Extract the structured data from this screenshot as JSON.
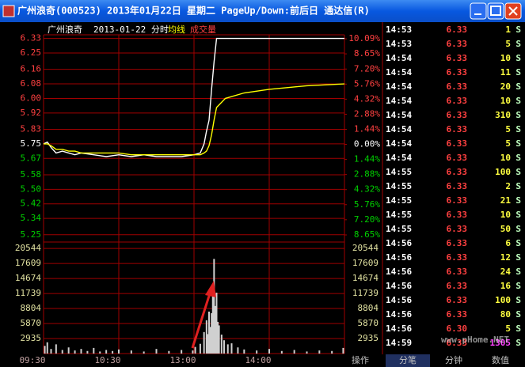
{
  "window": {
    "title": "广州浪奇(000523) 2013年01月22日 星期二 PageUp/Down:前后日 通达信(R)"
  },
  "chart_data": [
    {
      "type": "line",
      "title": "广州浪奇",
      "subtitle": "2013-01-22 分时",
      "x": [
        "09:30",
        "09:33",
        "09:36",
        "09:40",
        "09:45",
        "09:50",
        "09:55",
        "10:00",
        "10:10",
        "10:20",
        "10:30",
        "10:40",
        "10:50",
        "11:00",
        "11:10",
        "11:20",
        "11:30",
        "13:05",
        "13:08",
        "13:10",
        "13:12",
        "13:14",
        "13:16",
        "13:18",
        "13:25",
        "13:40",
        "14:00",
        "14:30",
        "15:00"
      ],
      "series": [
        {
          "color": "#ffffff",
          "values": [
            5.75,
            5.76,
            5.73,
            5.7,
            5.71,
            5.7,
            5.69,
            5.7,
            5.69,
            5.68,
            5.69,
            5.68,
            5.69,
            5.68,
            5.68,
            5.68,
            5.69,
            5.7,
            5.75,
            5.82,
            5.88,
            6.05,
            6.2,
            6.33,
            6.33,
            6.33,
            6.33,
            6.33,
            6.33
          ]
        },
        {
          "name": "均线",
          "color": "#ffff00",
          "values": [
            5.75,
            5.75,
            5.74,
            5.72,
            5.72,
            5.71,
            5.71,
            5.7,
            5.7,
            5.7,
            5.7,
            5.69,
            5.69,
            5.69,
            5.69,
            5.69,
            5.69,
            5.69,
            5.7,
            5.71,
            5.74,
            5.8,
            5.88,
            5.95,
            6.0,
            6.03,
            6.05,
            6.07,
            6.08
          ]
        }
      ],
      "xticks": [
        "09:30",
        "10:30",
        "13:00",
        "14:00"
      ],
      "ylim": [
        5.21,
        6.35
      ],
      "yticks": [
        6.33,
        6.25,
        6.16,
        6.08,
        {
          "value": 6.0,
          "label": "6.00"
        },
        5.92,
        5.83,
        5.75,
        5.67,
        5.58,
        {
          "value": 5.5,
          "label": "5.50"
        },
        5.42,
        5.34,
        5.25
      ],
      "y2lim": [
        -9.33,
        10.47
      ],
      "y2ticks": [
        {
          "value": 10.09,
          "label": "10.09%"
        },
        {
          "value": 8.65,
          "label": "8.65%"
        },
        {
          "value": 7.2,
          "label": "7.20%"
        },
        {
          "value": 5.76,
          "label": "5.76%"
        },
        {
          "value": 4.32,
          "label": "4.32%"
        },
        {
          "value": 2.88,
          "label": "2.88%"
        },
        {
          "value": 1.44,
          "label": "1.44%"
        },
        {
          "value": 0,
          "label": "0.00%"
        },
        {
          "value": -1.44,
          "label": "1.44%"
        },
        {
          "value": -2.88,
          "label": "2.88%"
        },
        {
          "value": -4.32,
          "label": "4.32%"
        },
        {
          "value": -5.76,
          "label": "5.76%"
        },
        {
          "value": -7.2,
          "label": "7.20%"
        },
        {
          "value": -8.65,
          "label": "8.65%"
        }
      ],
      "grid": true
    },
    {
      "type": "bar",
      "x": [
        "09:31",
        "09:33",
        "09:36",
        "09:40",
        "09:45",
        "09:50",
        "09:55",
        "10:00",
        "10:05",
        "10:10",
        "10:15",
        "10:20",
        "10:25",
        "10:30",
        "10:40",
        "10:50",
        "11:00",
        "11:10",
        "11:20",
        "11:29",
        "13:01",
        "13:05",
        "13:08",
        "13:10",
        "13:11",
        "13:12",
        "13:13",
        "13:14",
        "13:15",
        "13:16",
        "13:17",
        "13:18",
        "13:19",
        "13:20",
        "13:22",
        "13:24",
        "13:27",
        "13:30",
        "13:35",
        "13:40",
        "13:50",
        "14:00",
        "14:10",
        "14:20",
        "14:30",
        "14:40",
        "14:50",
        "14:59"
      ],
      "series": [
        {
          "name": "成交量",
          "color": "#d0d0d0",
          "values": [
            1500,
            2200,
            900,
            1800,
            700,
            1200,
            600,
            900,
            500,
            1100,
            400,
            700,
            500,
            800,
            600,
            400,
            900,
            500,
            700,
            600,
            1300,
            1900,
            4200,
            6500,
            3800,
            8200,
            5200,
            7900,
            12100,
            18500,
            9300,
            11900,
            6200,
            5500,
            3700,
            2600,
            1800,
            2000,
            1200,
            800,
            600,
            900,
            500,
            700,
            400,
            600,
            500,
            1100
          ]
        }
      ],
      "ylim": [
        0,
        21800
      ],
      "yticks": [
        20544,
        17609,
        14674,
        11739,
        8804,
        5870,
        2935
      ],
      "grid": true
    }
  ],
  "trades": [
    [
      "14:53",
      "6.33",
      "1",
      "S"
    ],
    [
      "14:53",
      "6.33",
      "5",
      "S"
    ],
    [
      "14:54",
      "6.33",
      "10",
      "S"
    ],
    [
      "14:54",
      "6.33",
      "11",
      "S"
    ],
    [
      "14:54",
      "6.33",
      "20",
      "S"
    ],
    [
      "14:54",
      "6.33",
      "10",
      "S"
    ],
    [
      "14:54",
      "6.33",
      "310",
      "S"
    ],
    [
      "14:54",
      "6.33",
      "5",
      "S"
    ],
    [
      "14:54",
      "6.33",
      "5",
      "S"
    ],
    [
      "14:54",
      "6.33",
      "10",
      "S"
    ],
    [
      "14:55",
      "6.33",
      "100",
      "S"
    ],
    [
      "14:55",
      "6.33",
      "2",
      "S"
    ],
    [
      "14:55",
      "6.33",
      "21",
      "S"
    ],
    [
      "14:55",
      "6.33",
      "10",
      "S"
    ],
    [
      "14:55",
      "6.33",
      "50",
      "S"
    ],
    [
      "14:56",
      "6.33",
      "6",
      "S"
    ],
    [
      "14:56",
      "6.33",
      "12",
      "S"
    ],
    [
      "14:56",
      "6.33",
      "24",
      "S"
    ],
    [
      "14:56",
      "6.33",
      "16",
      "S"
    ],
    [
      "14:56",
      "6.33",
      "100",
      "S"
    ],
    [
      "14:56",
      "6.33",
      "80",
      "S"
    ],
    [
      "14:56",
      "6.30",
      "5",
      "S"
    ],
    [
      "14:59",
      "6.33",
      "1305",
      "S"
    ]
  ],
  "tabs": [
    "操作",
    "分笔",
    "分钟",
    "数值"
  ],
  "watermark": "www.pHome.NET"
}
